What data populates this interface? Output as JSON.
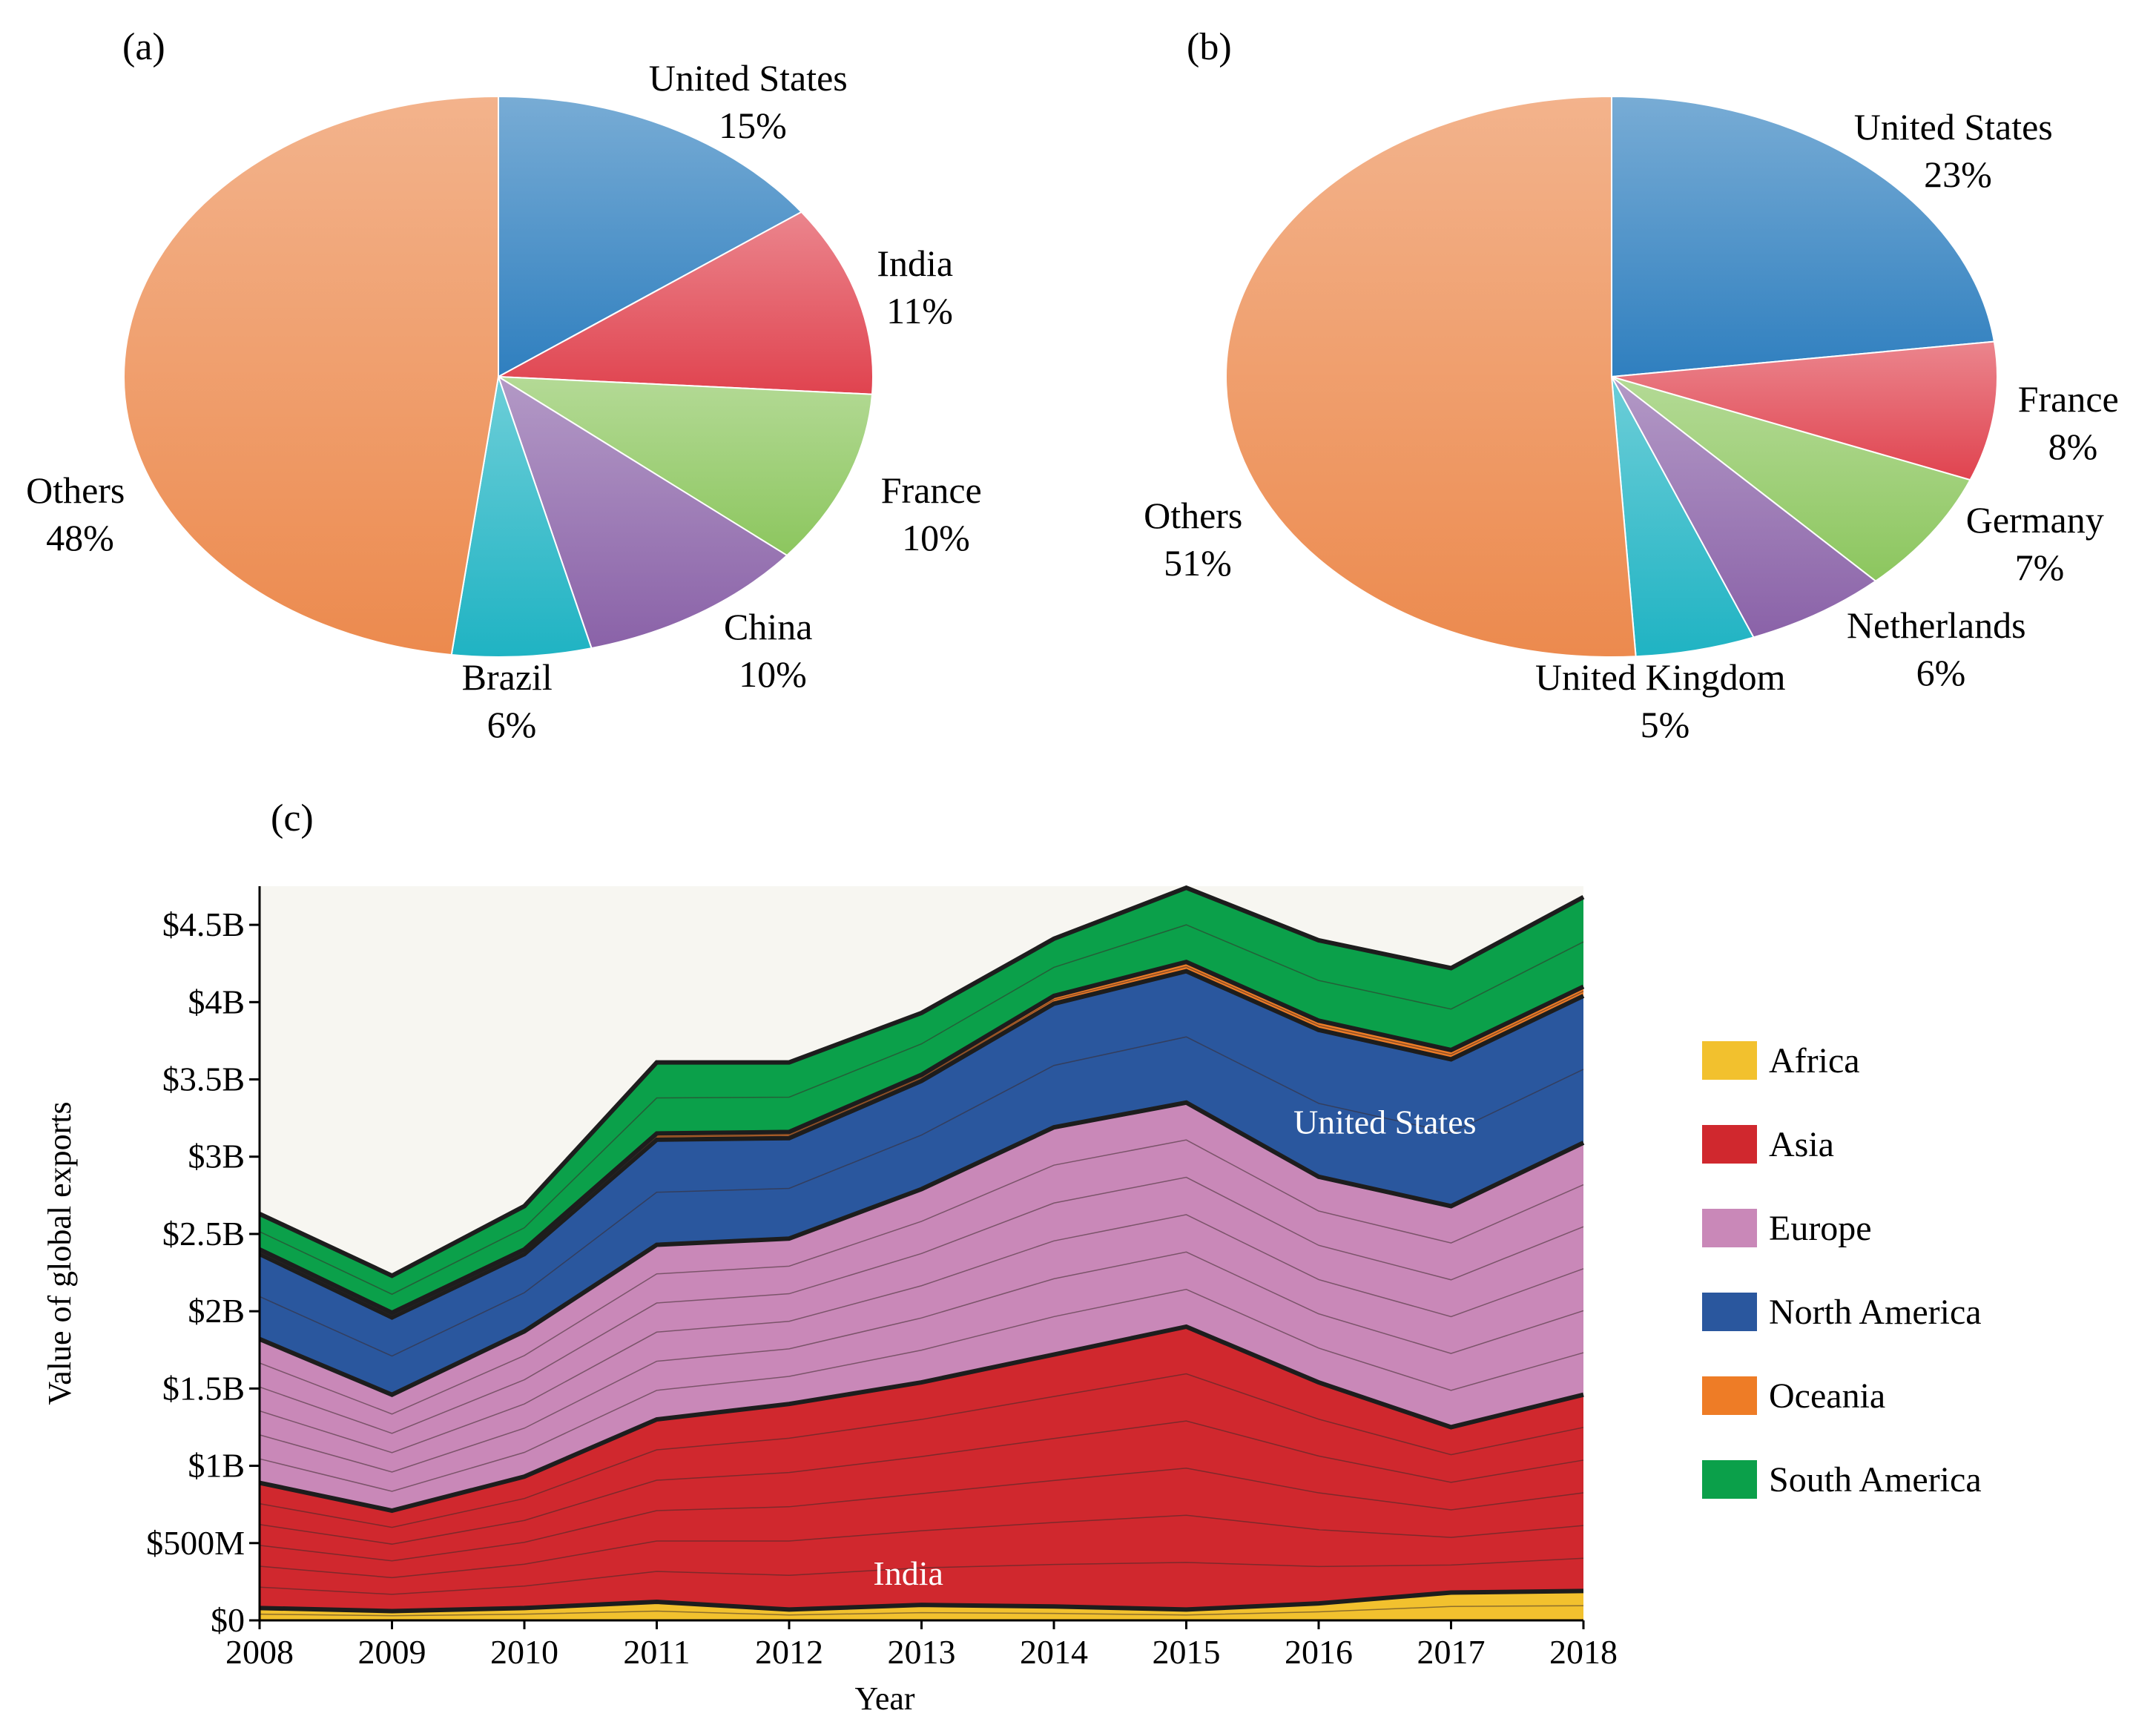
{
  "chart_data": [
    {
      "panel": "(a)",
      "type": "pie",
      "slices": [
        {
          "label": "United States",
          "pct": "15%",
          "value": 15,
          "color": "#2f7fbf"
        },
        {
          "label": "India",
          "pct": "11%",
          "value": 11,
          "color": "#e0434f"
        },
        {
          "label": "France",
          "pct": "10%",
          "value": 10,
          "color": "#8cc65e"
        },
        {
          "label": "China",
          "pct": "10%",
          "value": 10,
          "color": "#8a62a8"
        },
        {
          "label": "Brazil",
          "pct": "6%",
          "value": 6,
          "color": "#1fb3c3"
        },
        {
          "label": "Others",
          "pct": "48%",
          "value": 48,
          "color": "#ec8a4e"
        }
      ]
    },
    {
      "panel": "(b)",
      "type": "pie",
      "slices": [
        {
          "label": "United States",
          "pct": "23%",
          "value": 23,
          "color": "#2f7fbf"
        },
        {
          "label": "France",
          "pct": "8%",
          "value": 8,
          "color": "#e0434f"
        },
        {
          "label": "Germany",
          "pct": "7%",
          "value": 7,
          "color": "#8cc65e"
        },
        {
          "label": "Netherlands",
          "pct": "6%",
          "value": 6,
          "color": "#8a62a8"
        },
        {
          "label": "United Kingdom",
          "pct": "5%",
          "value": 5,
          "color": "#1fb3c3"
        },
        {
          "label": "Others",
          "pct": "51%",
          "value": 51,
          "color": "#ec8a4e"
        }
      ]
    },
    {
      "panel": "(c)",
      "type": "area",
      "xlabel": "Year",
      "ylabel": "Value of global exports",
      "x": [
        2008,
        2009,
        2010,
        2011,
        2012,
        2013,
        2014,
        2015,
        2016,
        2017,
        2018
      ],
      "ylim": [
        0,
        4.75
      ],
      "yticks": [
        {
          "value": 0,
          "label": "$0"
        },
        {
          "value": 0.5,
          "label": "$500M"
        },
        {
          "value": 1,
          "label": "$1B"
        },
        {
          "value": 1.5,
          "label": "$1.5B"
        },
        {
          "value": 2,
          "label": "$2B"
        },
        {
          "value": 2.5,
          "label": "$2.5B"
        },
        {
          "value": 3,
          "label": "$3B"
        },
        {
          "value": 3.5,
          "label": "$3.5B"
        },
        {
          "value": 4,
          "label": "$4B"
        },
        {
          "value": 4.5,
          "label": "$4.5B"
        }
      ],
      "series": [
        {
          "name": "Africa",
          "color": "#f2c12e",
          "values": [
            0.08,
            0.06,
            0.08,
            0.12,
            0.07,
            0.1,
            0.09,
            0.07,
            0.11,
            0.18,
            0.19
          ]
        },
        {
          "name": "Asia",
          "color": "#d0282e",
          "values": [
            0.81,
            0.65,
            0.85,
            1.18,
            1.33,
            1.44,
            1.63,
            1.83,
            1.43,
            1.07,
            1.27
          ]
        },
        {
          "name": "Europe",
          "color": "#c988b8",
          "values": [
            0.93,
            0.75,
            0.94,
            1.13,
            1.07,
            1.25,
            1.47,
            1.45,
            1.33,
            1.43,
            1.63
          ]
        },
        {
          "name": "North America",
          "color": "#2a579e",
          "values": [
            0.55,
            0.5,
            0.5,
            0.68,
            0.65,
            0.7,
            0.8,
            0.85,
            0.95,
            0.95,
            0.95
          ]
        },
        {
          "name": "Oceania",
          "color": "#ee7c26",
          "values": [
            0.03,
            0.03,
            0.03,
            0.04,
            0.04,
            0.04,
            0.05,
            0.06,
            0.06,
            0.06,
            0.06
          ]
        },
        {
          "name": "South America",
          "color": "#0ba04a",
          "values": [
            0.23,
            0.24,
            0.28,
            0.46,
            0.45,
            0.4,
            0.37,
            0.48,
            0.52,
            0.53,
            0.58
          ]
        }
      ],
      "annotations": [
        {
          "text": "India",
          "x": 2012.9,
          "y": 0.23
        },
        {
          "text": "United States",
          "x": 2016.5,
          "y": 3.15
        }
      ]
    }
  ]
}
